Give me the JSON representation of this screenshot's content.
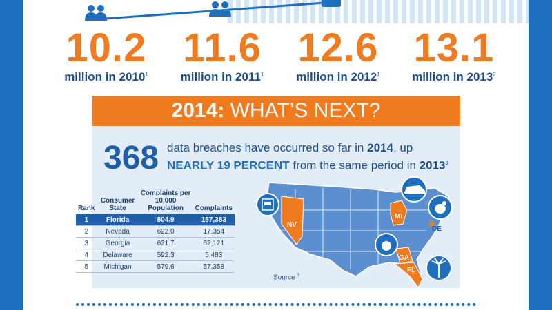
{
  "stats": [
    {
      "value": "10.2",
      "label": "million in 2010",
      "note": "1"
    },
    {
      "value": "11.6",
      "label": "million in 2011",
      "note": "1"
    },
    {
      "value": "12.6",
      "label": "million in 2012",
      "note": "1"
    },
    {
      "value": "13.1",
      "label": "million in 2013",
      "note": "2"
    }
  ],
  "banner": {
    "year": "2014:",
    "text": " WHAT’S NEXT?"
  },
  "breach": {
    "count": "368",
    "text1": "data breaches have occurred so far in ",
    "year1": "2014",
    "text2": ", up ",
    "highlight": "NEARLY 19 PERCENT",
    "text3": " from the same period in ",
    "year2": "2013",
    "note": "3"
  },
  "table": {
    "headers": [
      "Rank",
      "Consumer State",
      "Complaints per 10,000 Population",
      "Complaints"
    ],
    "rows": [
      [
        "1",
        "Florida",
        "804.9",
        "157,383"
      ],
      [
        "2",
        "Nevada",
        "622.0",
        "17,354"
      ],
      [
        "3",
        "Georgia",
        "621.7",
        "62,121"
      ],
      [
        "4",
        "Delaware",
        "592.3",
        "5,483"
      ],
      [
        "5",
        "Michigan",
        "579.6",
        "57,358"
      ]
    ]
  },
  "map": {
    "states": [
      "NV",
      "MI",
      "DE",
      "GA",
      "FL"
    ],
    "source": "Source",
    "source_note": "3"
  },
  "colors": {
    "orange": "#f07a1e",
    "blue": "#1f6fbf",
    "dark_blue": "#1f5ea8",
    "panel": "#e3edf8"
  }
}
